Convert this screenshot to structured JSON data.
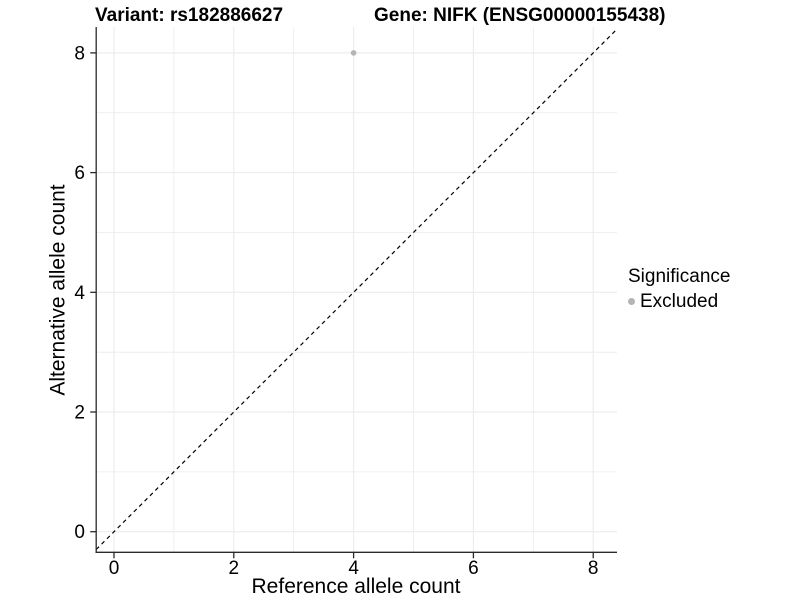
{
  "chart_data": {
    "type": "scatter",
    "titles": {
      "left": "Variant: rs182886627",
      "right": "Gene: NIFK (ENSG00000155438)"
    },
    "xlabel": "Reference allele count",
    "ylabel": "Alternative allele count",
    "xlim": [
      -0.297,
      8.397
    ],
    "ylim": [
      -0.344,
      8.433
    ],
    "xticks": [
      0,
      2,
      4,
      6,
      8
    ],
    "yticks": [
      0,
      2,
      4,
      6,
      8
    ],
    "minor_ticks_x": [
      1,
      3,
      5,
      7
    ],
    "minor_ticks_y": [
      1,
      3,
      5,
      7
    ],
    "grid": "major+minor",
    "reference_line": {
      "slope": 1,
      "intercept": 0,
      "style": "dashed",
      "color": "#000000"
    },
    "series": [
      {
        "name": "Excluded",
        "color": "#b4b4b4",
        "points": [
          {
            "x": 4,
            "y": 8
          }
        ]
      }
    ],
    "legend": {
      "title": "Significance",
      "position": "right",
      "items": [
        {
          "label": "Excluded",
          "color": "#b4b4b4",
          "marker": "circle"
        }
      ]
    },
    "colors": {
      "grid": "#ebebeb",
      "axis": "#2a2a2a",
      "text": "#000000",
      "background": "#ffffff"
    }
  }
}
